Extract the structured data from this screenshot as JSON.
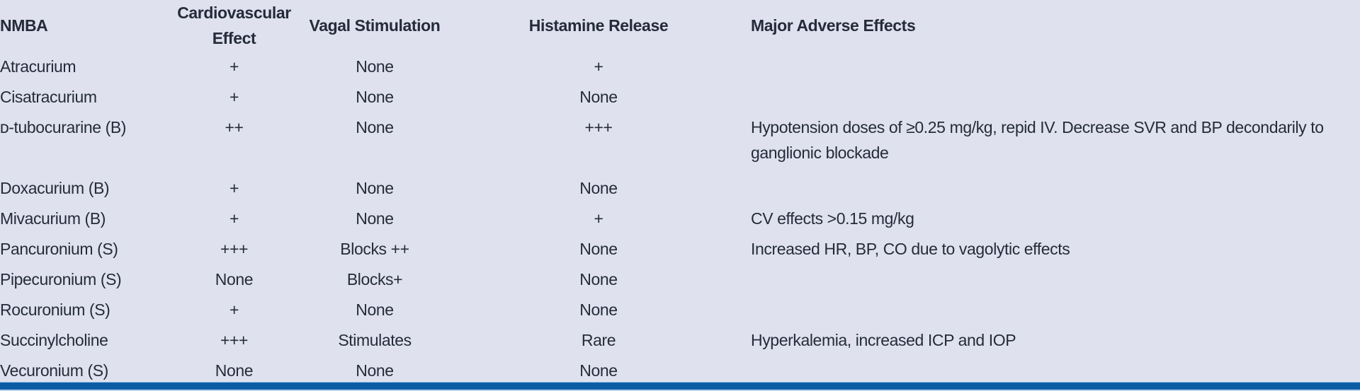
{
  "colors": {
    "panel_background": "#dfe2ee",
    "text": "#252b3a",
    "bottom_bar": "#0d5da6",
    "bottom_bar_edge_light": "#9fc3e6"
  },
  "table": {
    "columns": [
      {
        "key": "name",
        "label": "NMBA"
      },
      {
        "key": "cv",
        "label": "Cardiovascular Effect"
      },
      {
        "key": "vagal",
        "label": "Vagal Stimulation"
      },
      {
        "key": "histamine",
        "label": "Histamine Release"
      },
      {
        "key": "adverse",
        "label": "Major Adverse Effects"
      }
    ],
    "rows": [
      {
        "name": "Atracurium",
        "cv": "+",
        "vagal": "None",
        "histamine": "+",
        "adverse": ""
      },
      {
        "name": "Cisatracurium",
        "cv": "+",
        "vagal": "None",
        "histamine": "None",
        "adverse": ""
      },
      {
        "name": "ᴅ-tubocurarine (B)",
        "cv": "++",
        "vagal": "None",
        "histamine": "+++",
        "adverse": "Hypotension doses of ≥0.25 mg/kg, repid IV. Decrease SVR and BP decondarily to ganglionic blockade",
        "two_line": true
      },
      {
        "name": "Doxacurium (B)",
        "cv": "+",
        "vagal": "None",
        "histamine": "None",
        "adverse": ""
      },
      {
        "name": "Mivacurium (B)",
        "cv": "+",
        "vagal": "None",
        "histamine": "+",
        "adverse": "CV effects >0.15 mg/kg"
      },
      {
        "name": "Pancuronium (S)",
        "cv": "+++",
        "vagal": "Blocks ++",
        "histamine": "None",
        "adverse": "Increased HR, BP, CO due to vagolytic effects"
      },
      {
        "name": "Pipecuronium (S)",
        "cv": "None",
        "vagal": "Blocks+",
        "histamine": "None",
        "adverse": ""
      },
      {
        "name": "Rocuronium (S)",
        "cv": "+",
        "vagal": "None",
        "histamine": "None",
        "adverse": ""
      },
      {
        "name": "Succinylcholine",
        "cv": "+++",
        "vagal": "Stimulates",
        "histamine": "Rare",
        "adverse": "Hyperkalemia, increased ICP and IOP"
      },
      {
        "name": "Vecuronium (S)",
        "cv": "None",
        "vagal": "None",
        "histamine": "None",
        "adverse": ""
      }
    ]
  }
}
